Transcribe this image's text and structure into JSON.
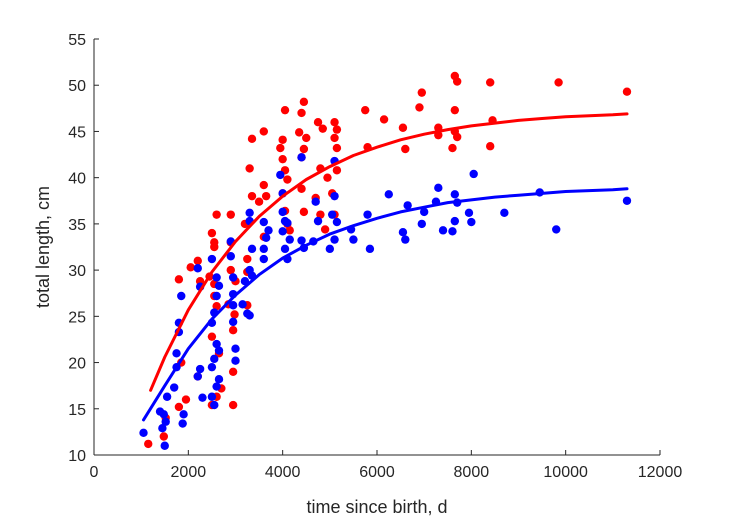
{
  "chart_data": {
    "type": "scatter",
    "title": "",
    "xlabel": "time since birth, d",
    "ylabel": "total length, cm",
    "xlim": [
      0,
      12000
    ],
    "ylim": [
      10,
      55
    ],
    "xticks": [
      0,
      2000,
      4000,
      6000,
      8000,
      10000,
      12000
    ],
    "yticks": [
      10,
      15,
      20,
      25,
      30,
      35,
      40,
      45,
      50,
      55
    ],
    "xtick_labels": [
      "0",
      "2000",
      "4000",
      "6000",
      "8000",
      "10000",
      "12000"
    ],
    "ytick_labels": [
      "10",
      "15",
      "20",
      "25",
      "30",
      "35",
      "40",
      "45",
      "50",
      "55"
    ],
    "grid": false,
    "series": [
      {
        "color": "#ff0000",
        "points": [
          [
            1150,
            11.2
          ],
          [
            1480,
            12
          ],
          [
            1520,
            14
          ],
          [
            1800,
            15.2
          ],
          [
            1850,
            20
          ],
          [
            1800,
            29
          ],
          [
            1950,
            16
          ],
          [
            2050,
            30.3
          ],
          [
            2200,
            31
          ],
          [
            2250,
            28.8
          ],
          [
            2200,
            18.5
          ],
          [
            2500,
            15.4
          ],
          [
            2550,
            33
          ],
          [
            2500,
            34
          ],
          [
            2600,
            36
          ],
          [
            2550,
            32.5
          ],
          [
            2450,
            29.3
          ],
          [
            2550,
            27.2
          ],
          [
            2600,
            16.3
          ],
          [
            2700,
            17.2
          ],
          [
            2650,
            21
          ],
          [
            2600,
            26.1
          ],
          [
            2550,
            28.5
          ],
          [
            2500,
            22.8
          ],
          [
            2900,
            36
          ],
          [
            2950,
            15.4
          ],
          [
            2950,
            19
          ],
          [
            2950,
            23.5
          ],
          [
            2900,
            30
          ],
          [
            2850,
            26.3
          ],
          [
            2900,
            33
          ],
          [
            3000,
            28.8
          ],
          [
            2980,
            25.2
          ],
          [
            3200,
            35
          ],
          [
            3250,
            26.2
          ],
          [
            3250,
            31.2
          ],
          [
            3300,
            41
          ],
          [
            3350,
            44.2
          ],
          [
            3350,
            38
          ],
          [
            3250,
            29.8
          ],
          [
            3600,
            45
          ],
          [
            3600,
            39.2
          ],
          [
            3500,
            37.4
          ],
          [
            3600,
            33.6
          ],
          [
            3650,
            38
          ],
          [
            4000,
            44.1
          ],
          [
            4050,
            47.3
          ],
          [
            4050,
            40.8
          ],
          [
            4000,
            38.3
          ],
          [
            4050,
            36.4
          ],
          [
            4100,
            35
          ],
          [
            4000,
            42
          ],
          [
            3950,
            43.2
          ],
          [
            4100,
            39.8
          ],
          [
            4150,
            34.3
          ],
          [
            4350,
            44.9
          ],
          [
            4400,
            47
          ],
          [
            4450,
            48.2
          ],
          [
            4400,
            42.2
          ],
          [
            4400,
            38.8
          ],
          [
            4450,
            36.3
          ],
          [
            4500,
            44.3
          ],
          [
            4450,
            43.1
          ],
          [
            4750,
            46
          ],
          [
            4800,
            41
          ],
          [
            4850,
            45.3
          ],
          [
            4950,
            40
          ],
          [
            4700,
            37.8
          ],
          [
            4800,
            36
          ],
          [
            4900,
            34.4
          ],
          [
            5050,
            38.3
          ],
          [
            5100,
            46
          ],
          [
            5100,
            44.3
          ],
          [
            5150,
            43.2
          ],
          [
            5100,
            36
          ],
          [
            5150,
            45.2
          ],
          [
            5150,
            40.8
          ],
          [
            5750,
            47.3
          ],
          [
            5800,
            43.3
          ],
          [
            6150,
            46.3
          ],
          [
            6550,
            45.4
          ],
          [
            6600,
            43.1
          ],
          [
            6950,
            49.2
          ],
          [
            6900,
            47.6
          ],
          [
            7300,
            45.4
          ],
          [
            7300,
            44.6
          ],
          [
            7650,
            51
          ],
          [
            7700,
            50.4
          ],
          [
            7650,
            47.3
          ],
          [
            7650,
            45
          ],
          [
            7700,
            44.4
          ],
          [
            7600,
            43.2
          ],
          [
            8400,
            50.3
          ],
          [
            8450,
            46.2
          ],
          [
            8400,
            43.4
          ],
          [
            9850,
            50.3
          ],
          [
            11300,
            49.3
          ]
        ]
      },
      {
        "color": "#0000ff",
        "points": [
          [
            1050,
            12.4
          ],
          [
            1400,
            14.7
          ],
          [
            1450,
            12.9
          ],
          [
            1500,
            11
          ],
          [
            1480,
            14.4
          ],
          [
            1520,
            13.6
          ],
          [
            1550,
            16.3
          ],
          [
            1700,
            17.3
          ],
          [
            1750,
            21
          ],
          [
            1800,
            24.3
          ],
          [
            1750,
            19.5
          ],
          [
            1850,
            27.2
          ],
          [
            1800,
            23.3
          ],
          [
            1900,
            14.4
          ],
          [
            1880,
            13.4
          ],
          [
            2200,
            30.2
          ],
          [
            2250,
            28.2
          ],
          [
            2250,
            19.3
          ],
          [
            2200,
            18.5
          ],
          [
            2300,
            16.2
          ],
          [
            2500,
            31.2
          ],
          [
            2500,
            16.3
          ],
          [
            2550,
            15.4
          ],
          [
            2500,
            19.5
          ],
          [
            2600,
            22
          ],
          [
            2550,
            25.4
          ],
          [
            2600,
            27.2
          ],
          [
            2650,
            28.3
          ],
          [
            2600,
            29.2
          ],
          [
            2650,
            21.3
          ],
          [
            2550,
            20.4
          ],
          [
            2500,
            24.3
          ],
          [
            2650,
            18.2
          ],
          [
            2600,
            17.4
          ],
          [
            2900,
            33.1
          ],
          [
            2950,
            29.2
          ],
          [
            2950,
            26.2
          ],
          [
            2950,
            24.4
          ],
          [
            3000,
            21.5
          ],
          [
            3000,
            20.2
          ],
          [
            2900,
            31.5
          ],
          [
            2950,
            27.4
          ],
          [
            3150,
            26.3
          ],
          [
            3200,
            28.8
          ],
          [
            3250,
            25.3
          ],
          [
            3300,
            25.1
          ],
          [
            3300,
            30
          ],
          [
            3350,
            29.4
          ],
          [
            3300,
            35.3
          ],
          [
            3300,
            36.2
          ],
          [
            3350,
            32.3
          ],
          [
            3600,
            35.2
          ],
          [
            3650,
            33.5
          ],
          [
            3600,
            32.3
          ],
          [
            3700,
            34.3
          ],
          [
            3600,
            31.2
          ],
          [
            3950,
            40.3
          ],
          [
            4000,
            38.3
          ],
          [
            4000,
            36.3
          ],
          [
            4050,
            35.3
          ],
          [
            4050,
            32.3
          ],
          [
            4100,
            31.2
          ],
          [
            4150,
            33.3
          ],
          [
            4100,
            35.1
          ],
          [
            4000,
            34.2
          ],
          [
            4400,
            42.2
          ],
          [
            4400,
            33.2
          ],
          [
            4450,
            32.4
          ],
          [
            4700,
            37.4
          ],
          [
            4750,
            35.3
          ],
          [
            4650,
            33.1
          ],
          [
            5000,
            32.3
          ],
          [
            5100,
            41.8
          ],
          [
            5100,
            38
          ],
          [
            5050,
            36
          ],
          [
            5100,
            33.3
          ],
          [
            5150,
            35.2
          ],
          [
            5450,
            34.4
          ],
          [
            5500,
            33.3
          ],
          [
            5800,
            36
          ],
          [
            5850,
            32.3
          ],
          [
            6250,
            38.2
          ],
          [
            6550,
            34.1
          ],
          [
            6600,
            33.3
          ],
          [
            6650,
            37
          ],
          [
            6950,
            35
          ],
          [
            7000,
            36.3
          ],
          [
            7250,
            37.4
          ],
          [
            7300,
            38.9
          ],
          [
            7400,
            34.3
          ],
          [
            7650,
            38.2
          ],
          [
            7650,
            35.3
          ],
          [
            7600,
            34.2
          ],
          [
            7700,
            37.3
          ],
          [
            7950,
            36.2
          ],
          [
            8000,
            35.2
          ],
          [
            8050,
            40.4
          ],
          [
            8700,
            36.2
          ],
          [
            9450,
            38.4
          ],
          [
            9800,
            34.4
          ],
          [
            11300,
            37.5
          ]
        ]
      }
    ],
    "fits": [
      {
        "color": "#ff0000",
        "curve": [
          [
            1200,
            17
          ],
          [
            1500,
            20.6
          ],
          [
            2000,
            25.7
          ],
          [
            2500,
            29.8
          ],
          [
            3000,
            33.1
          ],
          [
            3500,
            35.8
          ],
          [
            4000,
            38
          ],
          [
            4500,
            39.8
          ],
          [
            5000,
            41.2
          ],
          [
            5500,
            42.4
          ],
          [
            6000,
            43.3
          ],
          [
            6500,
            44.1
          ],
          [
            7000,
            44.7
          ],
          [
            7500,
            45.2
          ],
          [
            8000,
            45.6
          ],
          [
            8500,
            45.9
          ],
          [
            9000,
            46.2
          ],
          [
            9500,
            46.4
          ],
          [
            10000,
            46.6
          ],
          [
            10500,
            46.7
          ],
          [
            11000,
            46.8
          ],
          [
            11300,
            46.9
          ]
        ]
      },
      {
        "color": "#0000ff",
        "curve": [
          [
            1050,
            13.8
          ],
          [
            1500,
            17.5
          ],
          [
            2000,
            21.5
          ],
          [
            2500,
            24.7
          ],
          [
            3000,
            27.3
          ],
          [
            3500,
            29.5
          ],
          [
            4000,
            31.3
          ],
          [
            4500,
            32.7
          ],
          [
            5000,
            33.9
          ],
          [
            5500,
            34.8
          ],
          [
            6000,
            35.6
          ],
          [
            6500,
            36.3
          ],
          [
            7000,
            36.8
          ],
          [
            7500,
            37.3
          ],
          [
            8000,
            37.6
          ],
          [
            8500,
            37.9
          ],
          [
            9000,
            38.1
          ],
          [
            9500,
            38.3
          ],
          [
            10000,
            38.5
          ],
          [
            10500,
            38.6
          ],
          [
            11000,
            38.7
          ],
          [
            11300,
            38.8
          ]
        ]
      }
    ]
  }
}
